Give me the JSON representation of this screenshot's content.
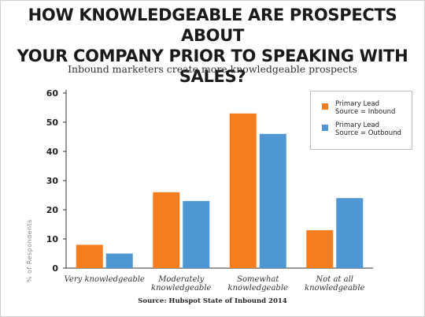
{
  "headline": {
    "line1": "HOW KNOWLEDGEABLE ARE PROSPECTS ABOUT",
    "line2": "YOUR COMPANY PRIOR TO SPEAKING WITH SALES?"
  },
  "chart_data": {
    "type": "bar",
    "title": "Inbound marketers create more knowledgeable prospects",
    "categories": [
      [
        "Very knowledgeable"
      ],
      [
        "Moderately",
        "knowledgeable"
      ],
      [
        "Somewhat",
        "knowledgeable"
      ],
      [
        "Not at all",
        "knowledgeable"
      ]
    ],
    "series": [
      {
        "name": "Primary Lead\nSource = Inbound",
        "color": "#f47d20",
        "values": [
          8,
          26,
          53,
          13
        ]
      },
      {
        "name": "Primary Lead\nSource = Outbound",
        "color": "#4f97d3",
        "values": [
          5,
          23,
          46,
          24
        ]
      }
    ],
    "ylabel": "% of Respondents",
    "ylim": [
      0,
      60
    ],
    "yticks": [
      0,
      10,
      20,
      30,
      40,
      50,
      60
    ],
    "grid": false,
    "legend_position": "top-right"
  },
  "source": "Source: Hubspot State of Inbound 2014"
}
